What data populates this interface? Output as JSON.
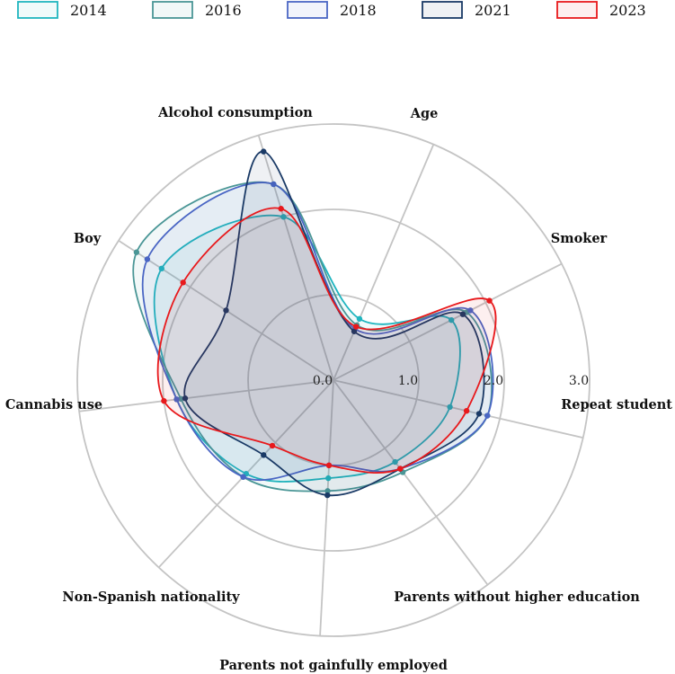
{
  "chart_data": {
    "type": "radar",
    "axes": [
      "Age",
      "Smoker",
      "Repeat student",
      "Parents without higher education",
      "Parents not gainfully employed",
      "Non-Spanish nationality",
      "Cannabis use",
      "Boy",
      "Alcohol consumption"
    ],
    "rlim": [
      0,
      3
    ],
    "ticks": [
      {
        "value": 0,
        "label": "0.0"
      },
      {
        "value": 1,
        "label": "1.0"
      },
      {
        "value": 2,
        "label": "2.0"
      },
      {
        "value": 3,
        "label": "3.0"
      }
    ],
    "grid": true,
    "legend_position": "top",
    "series": [
      {
        "name": "2014",
        "color": "#1fb5bf",
        "values": [
          0.78,
          1.55,
          1.4,
          1.2,
          1.15,
          1.5,
          1.85,
          2.4,
          2.0
        ]
      },
      {
        "name": "2016",
        "color": "#4a9696",
        "values": [
          0.7,
          1.75,
          1.85,
          1.35,
          1.3,
          1.55,
          1.8,
          2.75,
          2.4
        ]
      },
      {
        "name": "2018",
        "color": "#4a66c4",
        "values": [
          0.65,
          1.8,
          1.85,
          1.3,
          1.0,
          1.55,
          1.85,
          2.6,
          2.4
        ]
      },
      {
        "name": "2021",
        "color": "#1a3a66",
        "values": [
          0.62,
          1.7,
          1.75,
          1.3,
          1.35,
          1.2,
          1.75,
          1.5,
          2.8
        ]
      },
      {
        "name": "2023",
        "color": "#e8191c",
        "values": [
          0.68,
          2.05,
          1.6,
          1.3,
          1.0,
          1.05,
          2.0,
          2.1,
          2.1
        ]
      }
    ]
  }
}
